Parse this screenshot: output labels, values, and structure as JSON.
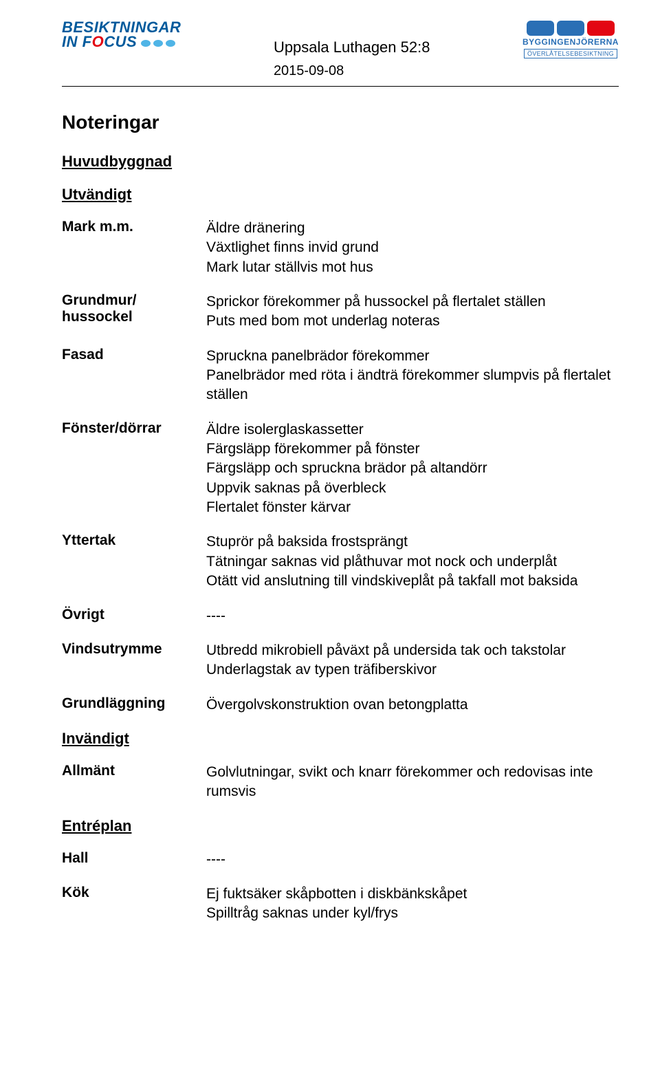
{
  "header": {
    "logo_left_line1_a": "BESIKTNINGAR",
    "logo_left_line2_a": "IN",
    "logo_left_line2_b": "F",
    "logo_left_line2_c": "CUS",
    "title": "Uppsala Luthagen 52:8",
    "date": "2015-09-08",
    "logo_right_line1": "BYGGINGENJÖRERNA",
    "logo_right_line2": "ÖVERLÅTELSEBESIKTNING"
  },
  "main_heading": "Noteringar",
  "sections": {
    "huvudbyggnad": "Huvudbyggnad",
    "utvandigt": "Utvändigt",
    "invandigt": "Invändigt",
    "entreplan": "Entréplan"
  },
  "rows": {
    "mark": {
      "label": "Mark m.m.",
      "text": "Äldre dränering\nVäxtlighet finns invid grund\nMark lutar ställvis mot hus"
    },
    "grundmur": {
      "label": "Grundmur/\nhussockel",
      "text": "Sprickor förekommer på hussockel på flertalet ställen\nPuts med bom mot underlag noteras"
    },
    "fasad": {
      "label": "Fasad",
      "text": "Spruckna panelbrädor förekommer\nPanelbrädor med röta i ändträ förekommer slumpvis på flertalet ställen"
    },
    "fonster": {
      "label": "Fönster/dörrar",
      "text": "Äldre isolerglaskassetter\nFärgsläpp förekommer på fönster\nFärgsläpp och spruckna brädor på altandörr\nUppvik saknas på överbleck\nFlertalet fönster kärvar"
    },
    "yttertak": {
      "label": "Yttertak",
      "text": "Stuprör på baksida frostsprängt\nTätningar saknas vid plåthuvar mot nock och underplåt\nOtätt vid anslutning till vindskiveplåt på takfall mot baksida"
    },
    "ovrigt": {
      "label": "Övrigt",
      "text": "----"
    },
    "vind": {
      "label": "Vindsutrymme",
      "text": "Utbredd mikrobiell påväxt på undersida tak och takstolar\nUnderlagstak av typen träfiberskivor"
    },
    "grund": {
      "label": "Grundläggning",
      "text": "Övergolvskonstruktion ovan betongplatta"
    },
    "allmant": {
      "label": "Allmänt",
      "text": "Golvlutningar, svikt och knarr förekommer och redovisas inte rumsvis"
    },
    "hall": {
      "label": "Hall",
      "text": "----"
    },
    "kok": {
      "label": "Kök",
      "text": "Ej fuktsäker skåpbotten i diskbänkskåpet\nSpilltråg saknas under kyl/frys"
    }
  }
}
